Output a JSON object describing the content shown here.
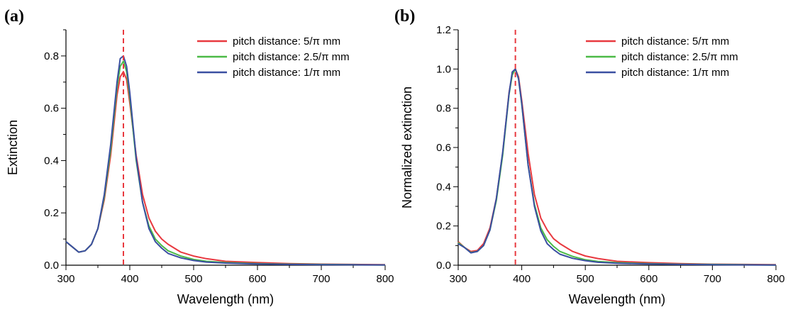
{
  "chart_data": [
    {
      "type": "line",
      "panel_label": "(a)",
      "xlabel": "Wavelength (nm)",
      "ylabel": "Extinction",
      "xlim": [
        300,
        800
      ],
      "ylim": [
        0,
        0.9
      ],
      "xticks": [
        300,
        400,
        500,
        600,
        700,
        800
      ],
      "yticks": [
        0.0,
        0.2,
        0.4,
        0.6,
        0.8
      ],
      "ytick_decimals": 1,
      "grid": false,
      "legend_position": "top-right",
      "reference_line": {
        "x": 390,
        "style": "dashed",
        "color": "#e8393f"
      },
      "series": [
        {
          "name": "pitch distance: 5/π mm",
          "color": "#e8393f",
          "x": [
            300,
            310,
            320,
            330,
            340,
            350,
            360,
            370,
            380,
            385,
            390,
            395,
            400,
            410,
            420,
            430,
            440,
            450,
            460,
            480,
            500,
            520,
            550,
            600,
            650,
            700,
            750,
            800
          ],
          "y": [
            0.09,
            0.07,
            0.05,
            0.055,
            0.08,
            0.14,
            0.25,
            0.42,
            0.65,
            0.72,
            0.74,
            0.71,
            0.62,
            0.42,
            0.27,
            0.18,
            0.13,
            0.1,
            0.08,
            0.05,
            0.035,
            0.025,
            0.015,
            0.01,
            0.006,
            0.004,
            0.003,
            0.002
          ]
        },
        {
          "name": "pitch distance: 2.5/π mm",
          "color": "#4cba47",
          "x": [
            300,
            310,
            320,
            330,
            340,
            350,
            360,
            370,
            380,
            385,
            390,
            395,
            400,
            410,
            420,
            430,
            440,
            450,
            460,
            480,
            500,
            520,
            550,
            600,
            650,
            700,
            750,
            800
          ],
          "y": [
            0.09,
            0.07,
            0.05,
            0.055,
            0.08,
            0.14,
            0.26,
            0.44,
            0.68,
            0.76,
            0.78,
            0.74,
            0.64,
            0.4,
            0.24,
            0.15,
            0.1,
            0.075,
            0.055,
            0.035,
            0.022,
            0.015,
            0.01,
            0.006,
            0.004,
            0.003,
            0.002,
            0.001
          ]
        },
        {
          "name": "pitch distance: 1/π mm",
          "color": "#3a4fa1",
          "x": [
            300,
            310,
            320,
            330,
            340,
            350,
            360,
            370,
            380,
            385,
            390,
            395,
            400,
            410,
            420,
            430,
            440,
            450,
            460,
            480,
            500,
            520,
            550,
            600,
            650,
            700,
            750,
            800
          ],
          "y": [
            0.09,
            0.07,
            0.05,
            0.055,
            0.08,
            0.14,
            0.27,
            0.46,
            0.7,
            0.79,
            0.8,
            0.76,
            0.66,
            0.41,
            0.24,
            0.14,
            0.09,
            0.065,
            0.045,
            0.028,
            0.018,
            0.012,
            0.008,
            0.005,
            0.003,
            0.002,
            0.0015,
            0.001
          ]
        }
      ]
    },
    {
      "type": "line",
      "panel_label": "(b)",
      "xlabel": "Wavelength (nm)",
      "ylabel": "Normalized extinction",
      "xlim": [
        300,
        800
      ],
      "ylim": [
        0,
        1.2
      ],
      "xticks": [
        300,
        400,
        500,
        600,
        700,
        800
      ],
      "yticks": [
        0.0,
        0.2,
        0.4,
        0.6,
        0.8,
        1.0,
        1.2
      ],
      "ytick_decimals": 1,
      "grid": false,
      "legend_position": "top-right",
      "reference_line": {
        "x": 390,
        "style": "dashed",
        "color": "#e8393f"
      },
      "series": [
        {
          "name": "pitch distance: 5/π mm",
          "color": "#e8393f",
          "x": [
            300,
            310,
            320,
            330,
            340,
            350,
            360,
            370,
            380,
            385,
            390,
            395,
            400,
            410,
            420,
            430,
            440,
            450,
            460,
            480,
            500,
            520,
            550,
            600,
            650,
            700,
            750,
            800
          ],
          "y": [
            0.12,
            0.09,
            0.07,
            0.075,
            0.11,
            0.19,
            0.34,
            0.57,
            0.88,
            0.97,
            1.0,
            0.96,
            0.84,
            0.57,
            0.36,
            0.24,
            0.18,
            0.135,
            0.11,
            0.07,
            0.047,
            0.034,
            0.02,
            0.013,
            0.008,
            0.005,
            0.004,
            0.003
          ]
        },
        {
          "name": "pitch distance: 2.5/π mm",
          "color": "#4cba47",
          "x": [
            300,
            310,
            320,
            330,
            340,
            350,
            360,
            370,
            380,
            385,
            390,
            395,
            400,
            410,
            420,
            430,
            440,
            450,
            460,
            480,
            500,
            520,
            550,
            600,
            650,
            700,
            750,
            800
          ],
          "y": [
            0.115,
            0.09,
            0.065,
            0.07,
            0.1,
            0.18,
            0.33,
            0.56,
            0.87,
            0.97,
            1.0,
            0.95,
            0.82,
            0.51,
            0.31,
            0.19,
            0.13,
            0.096,
            0.07,
            0.045,
            0.028,
            0.019,
            0.013,
            0.008,
            0.005,
            0.004,
            0.003,
            0.001
          ]
        },
        {
          "name": "pitch distance: 1/π mm",
          "color": "#3a4fa1",
          "x": [
            300,
            310,
            320,
            330,
            340,
            350,
            360,
            370,
            380,
            385,
            390,
            395,
            400,
            410,
            420,
            430,
            440,
            450,
            460,
            480,
            500,
            520,
            550,
            600,
            650,
            700,
            750,
            800
          ],
          "y": [
            0.11,
            0.09,
            0.063,
            0.07,
            0.1,
            0.18,
            0.34,
            0.575,
            0.875,
            0.985,
            1.0,
            0.95,
            0.825,
            0.51,
            0.3,
            0.175,
            0.11,
            0.08,
            0.056,
            0.035,
            0.023,
            0.015,
            0.01,
            0.006,
            0.004,
            0.0025,
            0.0019,
            0.001
          ]
        }
      ]
    }
  ]
}
